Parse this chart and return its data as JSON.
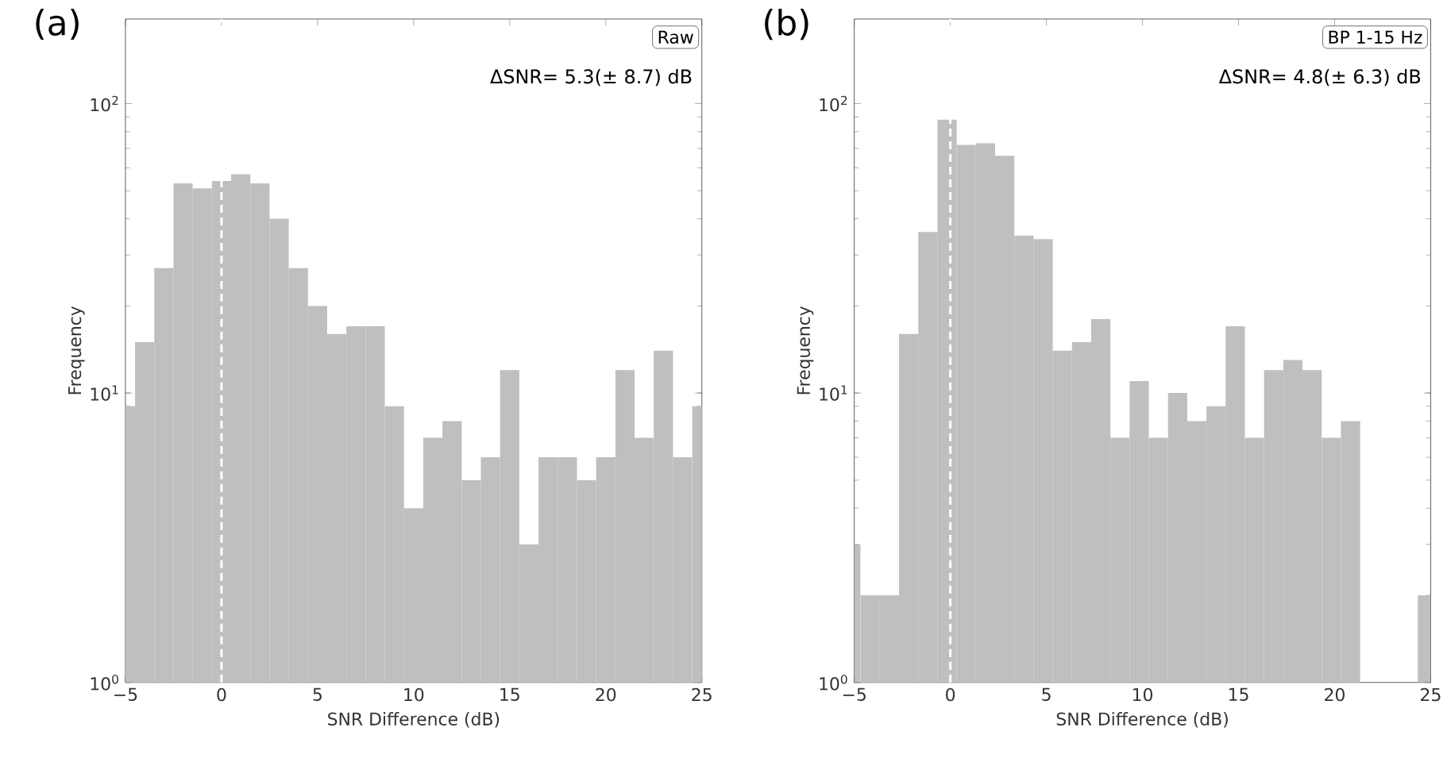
{
  "chart_data": [
    {
      "type": "histogram",
      "title": "(a)",
      "xlabel": "SNR Difference (dB)",
      "ylabel": "Frequency",
      "bins": [
        -5,
        -4.5,
        -3.5,
        -2.5,
        -1.5,
        -0.5,
        0.5,
        1.5,
        2.5,
        3.5,
        4.5,
        5.5,
        6.5,
        7.5,
        8.5,
        9.5,
        10.5,
        11.5,
        12.5,
        13.5,
        14.5,
        15.5,
        16.5,
        17.5,
        18.5,
        19.5,
        20.5,
        21.5,
        22.5,
        23.5,
        24.5,
        25
      ],
      "values": [
        9,
        15,
        27,
        53,
        51,
        54,
        57,
        53,
        40,
        27,
        20,
        16,
        17,
        17,
        9,
        4,
        7,
        8,
        5,
        6,
        12,
        3,
        6,
        6,
        5,
        6,
        12,
        7,
        14,
        6,
        9
      ],
      "color": "#bfbfbf",
      "log": "y",
      "xlim": [
        -5,
        25
      ],
      "xticks": [
        {
          "value": -5,
          "label": "−5"
        },
        0,
        5,
        10,
        15,
        20,
        25
      ],
      "ylim": [
        1,
        196
      ],
      "yticks": [
        {
          "value": 1,
          "label": "10$^{0}$"
        },
        {
          "value": 10,
          "label": "10$^{1}$"
        },
        {
          "value": 100,
          "label": "10$^{2}$"
        }
      ],
      "ref_lines": [
        {
          "axis": "x",
          "value": 0,
          "color": "#ffffff",
          "line_style": "dashed"
        }
      ],
      "annotations": [
        "Raw",
        "ΔSNR=  5.3(± 8.7) dB"
      ]
    },
    {
      "type": "histogram",
      "title": "(b)",
      "xlabel": "SNR Difference (dB)",
      "ylabel": "Frequency",
      "bins": [
        -5,
        -4.67,
        -3.67,
        -2.67,
        -1.67,
        -0.67,
        0.33,
        1.33,
        2.33,
        3.33,
        4.33,
        5.33,
        6.33,
        7.33,
        8.33,
        9.33,
        10.33,
        11.33,
        12.33,
        13.33,
        14.33,
        15.33,
        16.33,
        17.33,
        18.33,
        19.33,
        20.33,
        21.33,
        24.33,
        25
      ],
      "values": [
        3,
        2,
        2,
        16,
        36,
        88,
        72,
        73,
        66,
        35,
        34,
        14,
        15,
        18,
        7,
        11,
        7,
        10,
        8,
        9,
        17,
        7,
        12,
        13,
        12,
        7,
        8,
        null,
        2
      ],
      "color": "#bfbfbf",
      "log": "y",
      "xlim": [
        -5,
        25
      ],
      "xticks": [
        {
          "value": -5,
          "label": "−5"
        },
        0,
        5,
        10,
        15,
        20,
        25
      ],
      "ylim": [
        1,
        196
      ],
      "yticks": [
        {
          "value": 1,
          "label": "10$^{0}$"
        },
        {
          "value": 10,
          "label": "10$^{1}$"
        },
        {
          "value": 100,
          "label": "10$^{2}$"
        }
      ],
      "ref_lines": [
        {
          "axis": "x",
          "value": 0,
          "color": "#ffffff",
          "line_style": "dashed"
        }
      ],
      "annotations": [
        "BP 1-15 Hz",
        "ΔSNR=  4.8(± 6.3) dB"
      ]
    }
  ]
}
